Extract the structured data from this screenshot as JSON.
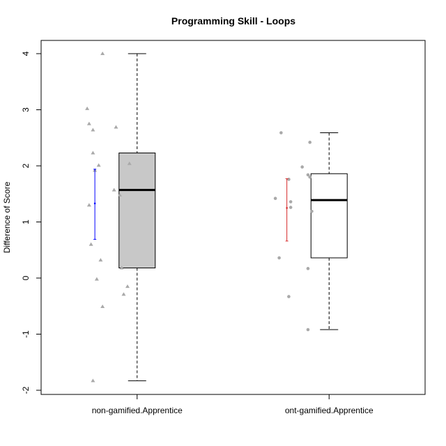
{
  "chart_data": {
    "type": "box",
    "title": "Programming Skill - Loops",
    "xlabel": "",
    "ylabel": "Difference of Score",
    "ylim": [
      -2,
      4
    ],
    "yticks": [
      "-2",
      "-1",
      "0",
      "1",
      "2",
      "3",
      "4"
    ],
    "categories": [
      "non-gamified.Apprentice",
      "ont-gamified.Apprentice"
    ],
    "grid": false,
    "boxes": [
      {
        "category": "non-gamified.Apprentice",
        "fill": "#c8c8c8",
        "min": -1.83,
        "q1": 0.18,
        "median": 1.57,
        "q3": 2.23,
        "max": 4.0,
        "ci_color": "#0000ff",
        "ci": {
          "low": 0.69,
          "mean": 1.33,
          "high": 1.94
        },
        "points": [
          {
            "x": 0.82,
            "y": 4.0
          },
          {
            "x": 0.74,
            "y": 3.02
          },
          {
            "x": 0.75,
            "y": 2.75
          },
          {
            "x": 0.77,
            "y": 2.64
          },
          {
            "x": 0.89,
            "y": 2.69
          },
          {
            "x": 0.77,
            "y": 2.23
          },
          {
            "x": 0.96,
            "y": 2.04
          },
          {
            "x": 0.8,
            "y": 2.01
          },
          {
            "x": 0.78,
            "y": 1.92
          },
          {
            "x": 0.88,
            "y": 1.57
          },
          {
            "x": 0.91,
            "y": 1.48
          },
          {
            "x": 0.75,
            "y": 1.3
          },
          {
            "x": 0.76,
            "y": 0.6
          },
          {
            "x": 0.81,
            "y": 0.32
          },
          {
            "x": 0.92,
            "y": 0.18
          },
          {
            "x": 0.79,
            "y": -0.02
          },
          {
            "x": 0.95,
            "y": -0.15
          },
          {
            "x": 0.93,
            "y": -0.29
          },
          {
            "x": 0.82,
            "y": -0.51
          },
          {
            "x": 0.77,
            "y": -1.83
          }
        ]
      },
      {
        "category": "ont-gamified.Apprentice",
        "fill": "#ffffff",
        "min": -0.92,
        "q1": 0.36,
        "median": 1.39,
        "q3": 1.86,
        "max": 2.59,
        "ci_color": "#d62728",
        "ci": {
          "low": 0.66,
          "mean": 1.25,
          "high": 1.77
        },
        "points": [
          {
            "x": 1.75,
            "y": 2.59
          },
          {
            "x": 1.9,
            "y": 2.42
          },
          {
            "x": 1.86,
            "y": 1.98
          },
          {
            "x": 1.89,
            "y": 1.84
          },
          {
            "x": 1.9,
            "y": 1.8
          },
          {
            "x": 1.79,
            "y": 1.76
          },
          {
            "x": 1.72,
            "y": 1.42
          },
          {
            "x": 1.8,
            "y": 1.36
          },
          {
            "x": 1.8,
            "y": 1.26
          },
          {
            "x": 1.91,
            "y": 1.19
          },
          {
            "x": 1.74,
            "y": 0.36
          },
          {
            "x": 1.89,
            "y": 0.17
          },
          {
            "x": 1.79,
            "y": -0.33
          },
          {
            "x": 1.89,
            "y": -0.92
          }
        ]
      }
    ]
  }
}
